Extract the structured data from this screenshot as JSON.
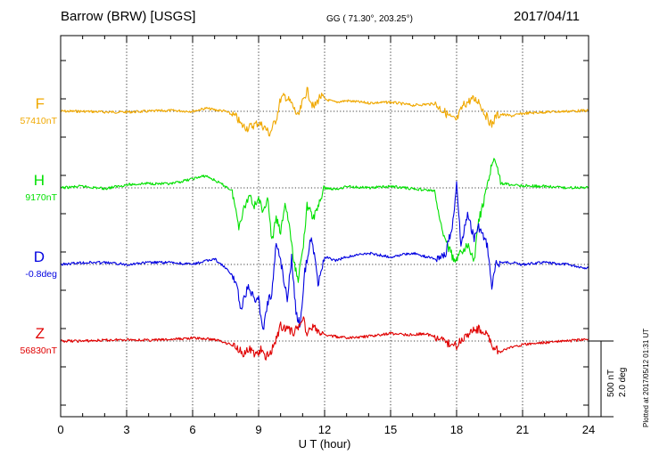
{
  "header": {
    "station": "Barrow (BRW)  [USGS]",
    "coords": "GG ( 71.30°, 203.25°)",
    "date": "2017/04/11"
  },
  "footer": {
    "plotted": "Plotted at 2017/05/12 01:31  UT",
    "scale_nt": "500 nT",
    "scale_deg": "2.0 deg"
  },
  "chart_data": {
    "type": "line",
    "xlabel": "U T (hour)",
    "xlim": [
      0,
      24
    ],
    "xticks": [
      "0",
      "3",
      "6",
      "9",
      "12",
      "15",
      "18",
      "21",
      "24"
    ],
    "grid": true,
    "scale_bar": {
      "nT": 500,
      "deg": 2.0
    },
    "series": [
      {
        "name": "F",
        "baseline_label": "57410nT",
        "color": "#f0a800",
        "unit": "nT",
        "x": [
          0,
          1,
          2,
          3,
          4,
          5,
          6,
          6.6,
          7,
          7.5,
          8,
          8.2,
          8.5,
          8.8,
          9,
          9.3,
          9.5,
          9.8,
          10,
          10.2,
          10.5,
          10.8,
          11,
          11.2,
          11.5,
          11.8,
          12,
          12.5,
          13,
          14,
          15,
          16,
          17,
          17.5,
          17.8,
          18,
          18.3,
          18.7,
          19,
          19.3,
          19.6,
          19.8,
          20,
          20.5,
          21,
          22,
          23,
          24
        ],
        "y": [
          0,
          0,
          -5,
          -5,
          0,
          5,
          0,
          20,
          10,
          0,
          -40,
          -90,
          -110,
          -90,
          -75,
          -110,
          -150,
          -50,
          80,
          100,
          50,
          -40,
          60,
          140,
          20,
          100,
          80,
          60,
          70,
          55,
          60,
          40,
          50,
          -10,
          -50,
          -60,
          40,
          80,
          70,
          -20,
          -90,
          -30,
          -20,
          -30,
          -15,
          -5,
          0,
          5
        ]
      },
      {
        "name": "H",
        "baseline_label": "9170nT",
        "color": "#00e000",
        "unit": "nT",
        "x": [
          0,
          1,
          2,
          3,
          4,
          5,
          6,
          6.6,
          7,
          7.5,
          7.8,
          8,
          8.1,
          8.3,
          8.6,
          8.8,
          9,
          9.2,
          9.4,
          9.6,
          9.8,
          10,
          10.2,
          10.4,
          10.6,
          10.8,
          11,
          11.2,
          11.5,
          11.8,
          12,
          12.5,
          13,
          14,
          15,
          16,
          17,
          17.2,
          17.5,
          17.8,
          18,
          18.2,
          18.5,
          18.8,
          19,
          19.3,
          19.6,
          19.8,
          20,
          20.5,
          21,
          22,
          23,
          24
        ],
        "y": [
          0,
          10,
          -5,
          20,
          30,
          25,
          60,
          80,
          50,
          10,
          -20,
          -180,
          -250,
          -150,
          -40,
          -120,
          -60,
          -180,
          -50,
          -360,
          -200,
          -300,
          -100,
          -250,
          -500,
          -600,
          -420,
          -120,
          -200,
          -80,
          0,
          -10,
          10,
          0,
          10,
          -5,
          -20,
          -200,
          -350,
          -450,
          -480,
          -430,
          -380,
          -480,
          -220,
          -60,
          160,
          180,
          30,
          20,
          15,
          10,
          0,
          5
        ]
      },
      {
        "name": "D",
        "baseline_label": "-0.8deg",
        "color": "#0000e0",
        "unit": "deg",
        "x": [
          0,
          1,
          2,
          3,
          4,
          5,
          6,
          7,
          7.5,
          7.8,
          8,
          8.2,
          8.5,
          8.8,
          9,
          9.2,
          9.4,
          9.6,
          9.8,
          10,
          10.3,
          10.5,
          10.7,
          10.9,
          11.1,
          11.4,
          11.7,
          12,
          12.5,
          13,
          14,
          15,
          16,
          17,
          17.5,
          17.8,
          18,
          18.2,
          18.5,
          18.8,
          19,
          19.4,
          19.6,
          19.8,
          20,
          20.5,
          21,
          22,
          23,
          24
        ],
        "y": [
          0,
          0.05,
          0.05,
          0,
          0.05,
          0.05,
          0,
          0.15,
          -0.1,
          -0.3,
          -0.5,
          -1.2,
          -0.6,
          -0.9,
          -0.9,
          -1.8,
          -1.0,
          -0.8,
          0.6,
          0.1,
          -0.9,
          0.2,
          -1.3,
          -1.6,
          -0.2,
          0.8,
          -0.5,
          0.2,
          0.1,
          0.2,
          0.3,
          0.2,
          0.3,
          0.15,
          0.3,
          1.0,
          2.1,
          0.5,
          1.3,
          0.7,
          1.0,
          0.5,
          -0.6,
          0,
          0.05,
          0.05,
          0,
          0.05,
          0,
          -0.1
        ]
      },
      {
        "name": "Z",
        "baseline_label": "56830nT",
        "color": "#e00000",
        "unit": "nT",
        "x": [
          0,
          1,
          2,
          3,
          4,
          5,
          6,
          7,
          7.5,
          8,
          8.3,
          8.6,
          8.9,
          9.1,
          9.3,
          9.5,
          9.7,
          10,
          10.3,
          10.6,
          10.8,
          11,
          11.2,
          11.5,
          11.8,
          12,
          12.5,
          13,
          14,
          15,
          16,
          16.5,
          17,
          17.5,
          18,
          18.3,
          18.6,
          19,
          19.4,
          19.7,
          20,
          20.5,
          21,
          22,
          23,
          24
        ],
        "y": [
          0,
          0,
          5,
          10,
          5,
          10,
          20,
          10,
          -10,
          -40,
          -80,
          -60,
          -90,
          -60,
          -110,
          -80,
          -30,
          100,
          80,
          60,
          90,
          160,
          50,
          100,
          40,
          40,
          30,
          20,
          30,
          50,
          40,
          50,
          30,
          -10,
          -30,
          20,
          60,
          80,
          40,
          -50,
          -70,
          -40,
          -25,
          -10,
          0,
          10
        ]
      }
    ]
  }
}
